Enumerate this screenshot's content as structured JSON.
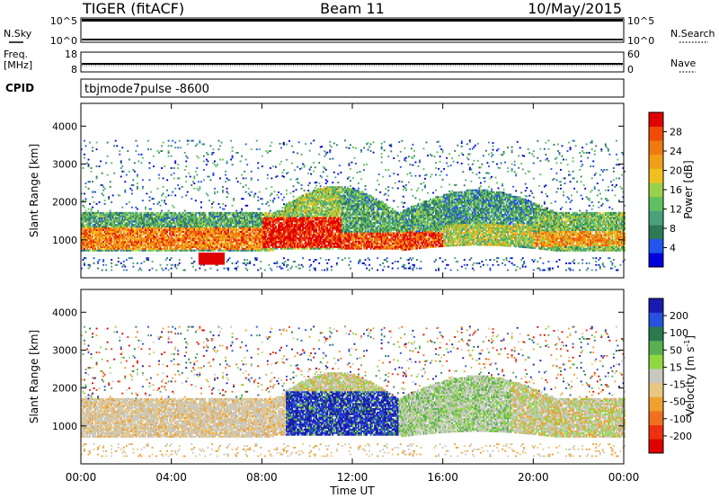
{
  "header": {
    "radar": "TIGER (fitACF)",
    "beam": "Beam 11",
    "date": "10/May/2015"
  },
  "status_panels": {
    "nsky_label": "N.Sky",
    "nsearch_label": "N.Search",
    "nsky_ticks": [
      "10^5",
      "10^0"
    ],
    "nsearch_ticks": [
      "10^5",
      "10^0"
    ],
    "freq_label_1": "Freq.",
    "freq_label_2": "[MHz]",
    "freq_ticks": [
      "18",
      "8"
    ],
    "nave_label": "Nave",
    "nave_ticks": [
      "60",
      "0"
    ],
    "cpid_label": "CPID",
    "cpid_text": "tbjmode7pulse  -8600"
  },
  "colors": {
    "power": [
      "#0000dd",
      "#2255ee",
      "#2e7a55",
      "#4aa07a",
      "#5fc05f",
      "#9ad04a",
      "#f0c020",
      "#f0a018",
      "#f07a10",
      "#f04a08",
      "#e00000"
    ],
    "velocity": [
      "#1a1ab0",
      "#2850e0",
      "#2a7a50",
      "#5ab050",
      "#8fd840",
      "#c8c8c0",
      "#e8c880",
      "#f0a030",
      "#f07020",
      "#ee3010",
      "#e00000"
    ]
  },
  "chart_data": [
    {
      "type": "heatmap",
      "name": "power",
      "ylabel": "Slant Range [km]",
      "ylim": [
        0,
        4600
      ],
      "yticks": [
        "1000",
        "2000",
        "3000",
        "4000"
      ],
      "xlim_hours": [
        0,
        24
      ],
      "colorbar": {
        "label": "Power [dB]",
        "ticks": [
          "4",
          "8",
          "12",
          "16",
          "20",
          "24",
          "28"
        ],
        "range": [
          0,
          32
        ]
      }
    },
    {
      "type": "heatmap",
      "name": "velocity",
      "ylabel": "Slant Range [km]",
      "ylim": [
        0,
        4600
      ],
      "yticks": [
        "1000",
        "2000",
        "3000",
        "4000"
      ],
      "xlim_hours": [
        0,
        24
      ],
      "colorbar": {
        "label": "Velocity [m s^-1]",
        "label_main": "Velocity [m s",
        "label_sup": "-1",
        "label_end": "]",
        "ticks": [
          "200",
          "100",
          "50",
          "15",
          "-15",
          "-50",
          "-100",
          "-200"
        ],
        "range": [
          -250,
          250
        ]
      }
    }
  ],
  "x_axis": {
    "ticks": [
      "00:00",
      "04:00",
      "08:00",
      "12:00",
      "16:00",
      "20:00",
      "00:00"
    ],
    "label": "Time UT"
  }
}
